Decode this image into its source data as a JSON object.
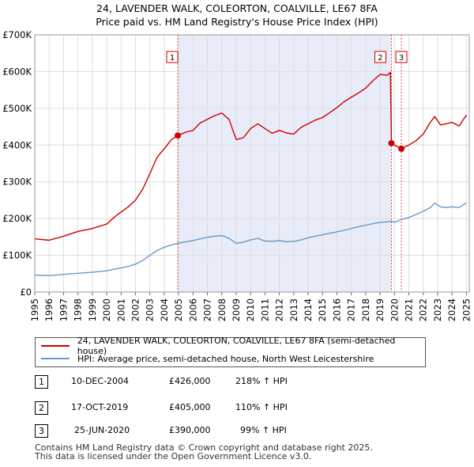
{
  "title_line1": "24, LAVENDER WALK, COLEORTON, COALVILLE, LE67 8FA",
  "title_line2": "Price paid vs. HM Land Registry's House Price Index (HPI)",
  "colors": {
    "property": "#cc0000",
    "hpi": "#6699cc",
    "shade": "#e8ecf8",
    "marker_line": "#cc0000"
  },
  "chart_data": {
    "type": "line",
    "xlim": [
      1995,
      2025.2
    ],
    "ylim": [
      0,
      700000
    ],
    "y_ticks": [
      {
        "value": 0,
        "label": "£0"
      },
      {
        "value": 100000,
        "label": "£100K"
      },
      {
        "value": 200000,
        "label": "£200K"
      },
      {
        "value": 300000,
        "label": "£300K"
      },
      {
        "value": 400000,
        "label": "£400K"
      },
      {
        "value": 500000,
        "label": "£500K"
      },
      {
        "value": 600000,
        "label": "£600K"
      },
      {
        "value": 700000,
        "label": "£700K"
      }
    ],
    "x_ticks": [
      "1995",
      "1996",
      "1997",
      "1998",
      "1999",
      "2000",
      "2001",
      "2002",
      "2003",
      "2004",
      "2005",
      "2006",
      "2007",
      "2008",
      "2009",
      "2010",
      "2011",
      "2012",
      "2013",
      "2014",
      "2015",
      "2016",
      "2017",
      "2018",
      "2019",
      "2020",
      "2021",
      "2022",
      "2023",
      "2024",
      "2025"
    ],
    "series": [
      {
        "name": "24, LAVENDER WALK, COLEORTON, COALVILLE, LE67 8FA (semi-detached house)",
        "color": "#cc0000",
        "points": [
          [
            1995.0,
            145000
          ],
          [
            1996.0,
            141000
          ],
          [
            1997.0,
            152000
          ],
          [
            1998.0,
            165000
          ],
          [
            1999.0,
            173000
          ],
          [
            2000.0,
            185000
          ],
          [
            2000.5,
            203000
          ],
          [
            2001.0,
            218000
          ],
          [
            2001.5,
            232000
          ],
          [
            2002.0,
            250000
          ],
          [
            2002.5,
            280000
          ],
          [
            2003.0,
            322000
          ],
          [
            2003.5,
            367000
          ],
          [
            2004.0,
            390000
          ],
          [
            2004.5,
            415000
          ],
          [
            2004.94,
            426000
          ],
          [
            2005.5,
            435000
          ],
          [
            2006.0,
            440000
          ],
          [
            2006.5,
            460000
          ],
          [
            2007.0,
            470000
          ],
          [
            2007.5,
            480000
          ],
          [
            2008.0,
            487000
          ],
          [
            2008.5,
            470000
          ],
          [
            2009.0,
            415000
          ],
          [
            2009.5,
            420000
          ],
          [
            2010.0,
            445000
          ],
          [
            2010.5,
            458000
          ],
          [
            2011.0,
            445000
          ],
          [
            2011.5,
            432000
          ],
          [
            2012.0,
            440000
          ],
          [
            2012.5,
            433000
          ],
          [
            2013.0,
            430000
          ],
          [
            2013.5,
            448000
          ],
          [
            2014.0,
            458000
          ],
          [
            2014.5,
            468000
          ],
          [
            2015.0,
            475000
          ],
          [
            2015.5,
            488000
          ],
          [
            2016.0,
            502000
          ],
          [
            2016.5,
            518000
          ],
          [
            2017.0,
            530000
          ],
          [
            2017.5,
            542000
          ],
          [
            2018.0,
            555000
          ],
          [
            2018.5,
            575000
          ],
          [
            2019.0,
            592000
          ],
          [
            2019.5,
            590000
          ],
          [
            2019.72,
            598000
          ],
          [
            2019.79,
            405000
          ],
          [
            2020.0,
            400000
          ],
          [
            2020.48,
            390000
          ],
          [
            2021.0,
            400000
          ],
          [
            2021.5,
            412000
          ],
          [
            2022.0,
            430000
          ],
          [
            2022.5,
            462000
          ],
          [
            2022.8,
            478000
          ],
          [
            2023.2,
            455000
          ],
          [
            2023.6,
            458000
          ],
          [
            2024.0,
            462000
          ],
          [
            2024.5,
            452000
          ],
          [
            2025.0,
            482000
          ]
        ]
      },
      {
        "name": "HPI: Average price, semi-detached house, North West Leicestershire",
        "color": "#6699cc",
        "points": [
          [
            1995.0,
            46000
          ],
          [
            1996.0,
            45000
          ],
          [
            1997.0,
            48000
          ],
          [
            1998.0,
            51000
          ],
          [
            1999.0,
            54000
          ],
          [
            2000.0,
            58000
          ],
          [
            2000.5,
            62000
          ],
          [
            2001.0,
            66000
          ],
          [
            2001.5,
            70000
          ],
          [
            2002.0,
            76000
          ],
          [
            2002.5,
            86000
          ],
          [
            2003.0,
            100000
          ],
          [
            2003.5,
            113000
          ],
          [
            2004.0,
            122000
          ],
          [
            2004.5,
            128000
          ],
          [
            2004.94,
            133000
          ],
          [
            2005.5,
            137000
          ],
          [
            2006.0,
            140000
          ],
          [
            2006.5,
            145000
          ],
          [
            2007.0,
            149000
          ],
          [
            2007.5,
            152000
          ],
          [
            2008.0,
            154000
          ],
          [
            2008.5,
            146000
          ],
          [
            2009.0,
            133000
          ],
          [
            2009.5,
            136000
          ],
          [
            2010.0,
            142000
          ],
          [
            2010.5,
            146000
          ],
          [
            2011.0,
            139000
          ],
          [
            2011.5,
            138000
          ],
          [
            2012.0,
            140000
          ],
          [
            2012.5,
            137000
          ],
          [
            2013.0,
            138000
          ],
          [
            2013.5,
            142000
          ],
          [
            2014.0,
            148000
          ],
          [
            2014.5,
            152000
          ],
          [
            2015.0,
            156000
          ],
          [
            2015.5,
            160000
          ],
          [
            2016.0,
            164000
          ],
          [
            2016.5,
            168000
          ],
          [
            2017.0,
            173000
          ],
          [
            2017.5,
            178000
          ],
          [
            2018.0,
            182000
          ],
          [
            2018.5,
            186000
          ],
          [
            2019.0,
            190000
          ],
          [
            2019.5,
            191000
          ],
          [
            2019.79,
            193000
          ],
          [
            2020.0,
            190000
          ],
          [
            2020.48,
            197000
          ],
          [
            2021.0,
            203000
          ],
          [
            2021.5,
            211000
          ],
          [
            2022.0,
            220000
          ],
          [
            2022.5,
            230000
          ],
          [
            2022.8,
            242000
          ],
          [
            2023.2,
            232000
          ],
          [
            2023.6,
            230000
          ],
          [
            2024.0,
            232000
          ],
          [
            2024.5,
            230000
          ],
          [
            2025.0,
            243000
          ]
        ]
      }
    ],
    "sales": [
      {
        "label": "1",
        "x": 2004.94,
        "price": 426000
      },
      {
        "label": "2",
        "x": 2019.79,
        "price": 405000
      },
      {
        "label": "3",
        "x": 2020.48,
        "price": 390000
      }
    ],
    "shade_from": 2004.94,
    "shade_to": 2019.79
  },
  "legend": {
    "property": "24, LAVENDER WALK, COLEORTON, COALVILLE, LE67 8FA (semi-detached house)",
    "hpi": "HPI: Average price, semi-detached house, North West Leicestershire"
  },
  "table": [
    {
      "num": "1",
      "date": "10-DEC-2004",
      "price": "£426,000",
      "hpi": "218% ↑ HPI"
    },
    {
      "num": "2",
      "date": "17-OCT-2019",
      "price": "£405,000",
      "hpi": "110% ↑ HPI"
    },
    {
      "num": "3",
      "date": "25-JUN-2020",
      "price": "£390,000",
      "hpi": "99% ↑ HPI"
    }
  ],
  "footer_line1": "Contains HM Land Registry data © Crown copyright and database right 2025.",
  "footer_line2": "This data is licensed under the Open Government Licence v3.0."
}
